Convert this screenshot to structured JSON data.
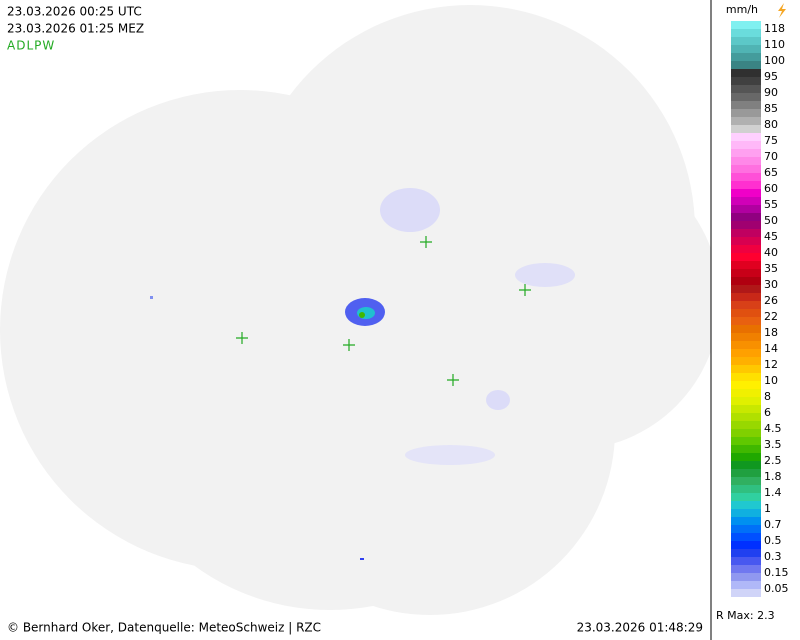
{
  "header": {
    "utc": "23.03.2026 00:25 UTC",
    "local": "23.03.2026 01:25 MEZ",
    "station": "ADLPW"
  },
  "legend": {
    "unit": "mm/h",
    "levels": [
      {
        "label": 118,
        "colors": [
          "#80f0f0",
          "#6adcdc"
        ]
      },
      {
        "label": 110,
        "colors": [
          "#5cc8c8",
          "#50b4b4"
        ]
      },
      {
        "label": 100,
        "colors": [
          "#449c9c",
          "#3a8484"
        ]
      },
      {
        "label": 95,
        "colors": [
          "#303030",
          "#404040"
        ]
      },
      {
        "label": 90,
        "colors": [
          "#555555",
          "#686868"
        ]
      },
      {
        "label": 85,
        "colors": [
          "#808080",
          "#999999"
        ]
      },
      {
        "label": 80,
        "colors": [
          "#b0b0b0",
          "#d0d0d0"
        ]
      },
      {
        "label": 75,
        "colors": [
          "#ffd0ff",
          "#ffb8f8"
        ]
      },
      {
        "label": 70,
        "colors": [
          "#ffa0f0",
          "#ff88e8"
        ]
      },
      {
        "label": 65,
        "colors": [
          "#ff70e0",
          "#ff50d8"
        ]
      },
      {
        "label": 60,
        "colors": [
          "#ff30d0",
          "#f000c8"
        ]
      },
      {
        "label": 55,
        "colors": [
          "#d000b8",
          "#b000a0"
        ]
      },
      {
        "label": 50,
        "colors": [
          "#900080",
          "#a00070"
        ]
      },
      {
        "label": 45,
        "colors": [
          "#c00060",
          "#d80050"
        ]
      },
      {
        "label": 40,
        "colors": [
          "#f00040",
          "#ff0030"
        ]
      },
      {
        "label": 35,
        "colors": [
          "#e00020",
          "#c80018"
        ]
      },
      {
        "label": 30,
        "colors": [
          "#b00010",
          "#b01818"
        ]
      },
      {
        "label": 26,
        "colors": [
          "#c82818",
          "#d84018"
        ]
      },
      {
        "label": 22,
        "colors": [
          "#e05010",
          "#e86010"
        ]
      },
      {
        "label": 18,
        "colors": [
          "#e87000",
          "#f08000"
        ]
      },
      {
        "label": 14,
        "colors": [
          "#f89000",
          "#ffa000"
        ]
      },
      {
        "label": 12,
        "colors": [
          "#ffb000",
          "#ffc800"
        ]
      },
      {
        "label": 10,
        "colors": [
          "#ffe000",
          "#fff000"
        ]
      },
      {
        "label": 8,
        "colors": [
          "#f0f000",
          "#e0f000"
        ]
      },
      {
        "label": 6,
        "colors": [
          "#c8e800",
          "#b0e000"
        ]
      },
      {
        "label": 4.5,
        "colors": [
          "#98d800",
          "#80d000"
        ]
      },
      {
        "label": 3.5,
        "colors": [
          "#60c800",
          "#40b800"
        ]
      },
      {
        "label": 2.5,
        "colors": [
          "#20a800",
          "#109820"
        ]
      },
      {
        "label": 1.8,
        "colors": [
          "#20a040",
          "#30b060"
        ]
      },
      {
        "label": 1.4,
        "colors": [
          "#30c080",
          "#30d0a0"
        ]
      },
      {
        "label": 1,
        "colors": [
          "#20c8d0",
          "#10b0e0"
        ]
      },
      {
        "label": 0.7,
        "colors": [
          "#0090f0",
          "#0070f8"
        ]
      },
      {
        "label": 0.5,
        "colors": [
          "#0050ff",
          "#0030ff"
        ]
      },
      {
        "label": 0.3,
        "colors": [
          "#2040f0",
          "#4858f0"
        ]
      },
      {
        "label": 0.15,
        "colors": [
          "#7078f0",
          "#9098f0"
        ]
      },
      {
        "label": 0.05,
        "colors": [
          "#b0b8f8",
          "#d0d4f8"
        ]
      }
    ],
    "rmax": "R Max: 2.3"
  },
  "footer": {
    "credit": "© Bernhard Oker, Datenquelle: MeteoSchweiz | RZC",
    "timestamp": "23.03.2026 01:48:29"
  }
}
